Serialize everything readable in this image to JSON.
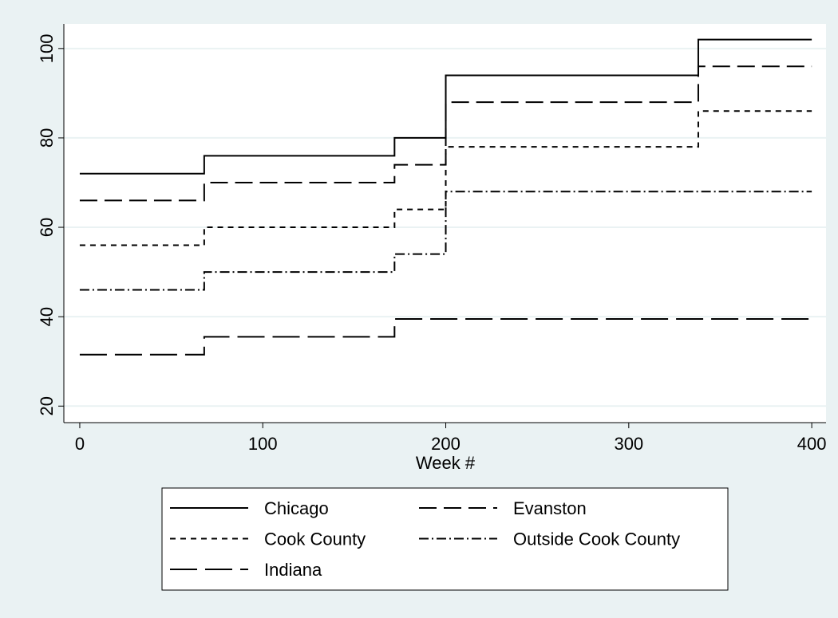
{
  "chart_data": {
    "type": "line",
    "step": "post",
    "x_label": "Week #",
    "x": [
      0,
      68,
      172,
      200,
      338,
      400
    ],
    "series": [
      {
        "name": "Chicago",
        "color": "#000000",
        "dash": "solid",
        "values": [
          72,
          76,
          80,
          94,
          102,
          102
        ]
      },
      {
        "name": "Evanston",
        "color": "#000000",
        "dash": "dash",
        "values": [
          66,
          70,
          74,
          88,
          96,
          96
        ]
      },
      {
        "name": "Cook County",
        "color": "#000000",
        "dash": "shortdash",
        "values": [
          56,
          60,
          64,
          78,
          86,
          86
        ]
      },
      {
        "name": "Outside Cook County",
        "color": "#000000",
        "dash": "dashdot",
        "values": [
          46,
          50,
          54,
          68,
          68,
          68
        ]
      },
      {
        "name": "Indiana",
        "color": "#000000",
        "dash": "longdash",
        "values": [
          31.5,
          35.5,
          39.5,
          39.5,
          39.5,
          39.5
        ]
      }
    ],
    "xlim": [
      -8.7,
      407.8
    ],
    "xticks": [
      0,
      100,
      200,
      300,
      400
    ],
    "ylim": [
      16.3,
      105.5
    ],
    "yticks": [
      20,
      40,
      60,
      80,
      100
    ],
    "grid": true,
    "legend": "bottom"
  }
}
